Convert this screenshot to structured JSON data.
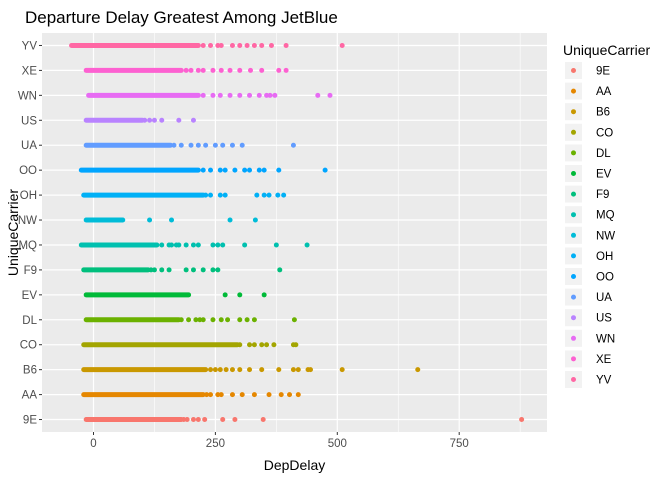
{
  "chart_data": {
    "type": "scatter",
    "title": "Departure Delay Greatest Among JetBlue",
    "xlabel": "DepDelay",
    "ylabel": "UniqueCarrier",
    "xlim": [
      -80,
      900
    ],
    "x_ticks": [
      0,
      250,
      500,
      750
    ],
    "grid": true,
    "legend_position": "right",
    "legend_title": "UniqueCarrier",
    "categories": [
      "9E",
      "AA",
      "B6",
      "CO",
      "DL",
      "EV",
      "F9",
      "MQ",
      "NW",
      "OH",
      "OO",
      "UA",
      "US",
      "WN",
      "XE",
      "YV"
    ],
    "colors": {
      "9E": "#F8766D",
      "AA": "#E58700",
      "B6": "#C99800",
      "CO": "#A3A500",
      "DL": "#6BB100",
      "EV": "#00BA38",
      "F9": "#00BF7D",
      "MQ": "#00C0AF",
      "NW": "#00BCD8",
      "OH": "#00B0F6",
      "OO": "#00A5FF",
      "UA": "#619CFF",
      "US": "#B983FF",
      "WN": "#E76BF3",
      "XE": "#FD61D1",
      "YV": "#FF67A4"
    },
    "series": [
      {
        "name": "9E",
        "range": [
          -15,
          180
        ],
        "x": [
          185,
          192,
          205,
          215,
          228,
          265,
          290,
          348,
          878
        ]
      },
      {
        "name": "AA",
        "range": [
          -20,
          225
        ],
        "x": [
          232,
          240,
          255,
          262,
          285,
          305,
          330,
          360,
          385,
          402,
          420
        ]
      },
      {
        "name": "B6",
        "range": [
          -20,
          230
        ],
        "x": [
          240,
          250,
          260,
          272,
          285,
          300,
          320,
          345,
          380,
          410,
          420,
          440,
          445,
          510,
          665
        ]
      },
      {
        "name": "CO",
        "range": [
          -20,
          295
        ],
        "x": [
          300,
          320,
          330,
          345,
          355,
          370,
          410,
          415
        ]
      },
      {
        "name": "DL",
        "range": [
          -15,
          175
        ],
        "x": [
          180,
          195,
          210,
          218,
          225,
          245,
          262,
          275,
          300,
          315,
          330,
          412
        ]
      },
      {
        "name": "EV",
        "range": [
          -15,
          195
        ],
        "x": [
          270,
          300,
          350
        ]
      },
      {
        "name": "F9",
        "range": [
          -20,
          112
        ],
        "x": [
          118,
          125,
          140,
          155,
          190,
          205,
          225,
          245,
          255,
          382
        ]
      },
      {
        "name": "MQ",
        "range": [
          -25,
          130
        ],
        "x": [
          140,
          155,
          160,
          170,
          175,
          190,
          205,
          215,
          245,
          255,
          265,
          310,
          375,
          438
        ]
      },
      {
        "name": "NW",
        "range": [
          -15,
          60
        ],
        "x": [
          115,
          160,
          280,
          332
        ]
      },
      {
        "name": "OH",
        "range": [
          -20,
          225
        ],
        "x": [
          230,
          240,
          260,
          270,
          335,
          350,
          360,
          378,
          390
        ]
      },
      {
        "name": "OO",
        "range": [
          -25,
          215
        ],
        "x": [
          225,
          240,
          260,
          270,
          290,
          310,
          320,
          340,
          350,
          380,
          475
        ]
      },
      {
        "name": "UA",
        "range": [
          -15,
          158
        ],
        "x": [
          165,
          180,
          200,
          215,
          230,
          250,
          265,
          285,
          305,
          410
        ]
      },
      {
        "name": "US",
        "range": [
          -15,
          100
        ],
        "x": [
          105,
          115,
          125,
          140,
          175,
          205
        ]
      },
      {
        "name": "WN",
        "range": [
          -10,
          215
        ],
        "x": [
          225,
          245,
          260,
          280,
          300,
          320,
          340,
          355,
          362,
          372,
          460,
          485
        ]
      },
      {
        "name": "XE",
        "range": [
          -15,
          180
        ],
        "x": [
          190,
          200,
          215,
          225,
          245,
          262,
          280,
          300,
          322,
          345,
          380,
          395
        ]
      },
      {
        "name": "YV",
        "range": [
          -45,
          215
        ],
        "x": [
          225,
          240,
          255,
          262,
          285,
          300,
          315,
          330,
          345,
          365,
          395,
          510
        ]
      }
    ]
  }
}
